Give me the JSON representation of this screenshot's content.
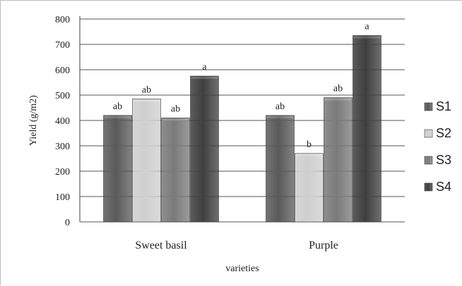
{
  "chart_data": {
    "type": "bar",
    "title": "",
    "xlabel": "varieties",
    "ylabel": "Yield (g/m2)",
    "ylim": [
      0,
      800
    ],
    "yticks": [
      0,
      100,
      200,
      300,
      400,
      500,
      600,
      700,
      800
    ],
    "grid": true,
    "legend_position": "right",
    "categories": [
      "Sweet basil",
      "Purple"
    ],
    "series": [
      {
        "name": "S1",
        "values": [
          420,
          420
        ],
        "labels": [
          "ab",
          "ab"
        ],
        "color": "#5a5a5a"
      },
      {
        "name": "S2",
        "values": [
          485,
          270
        ],
        "labels": [
          "ab",
          "b"
        ],
        "color": "#cfcfcf"
      },
      {
        "name": "S3",
        "values": [
          410,
          490
        ],
        "labels": [
          "ab",
          "ab"
        ],
        "color": "#7a7a7a"
      },
      {
        "name": "S4",
        "values": [
          575,
          735
        ],
        "labels": [
          "a",
          "a"
        ],
        "color": "#3f3f3f"
      }
    ]
  }
}
